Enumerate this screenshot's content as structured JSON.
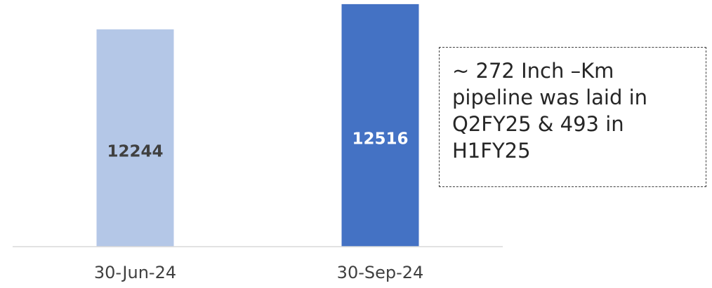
{
  "chart_data": {
    "type": "bar",
    "categories": [
      "30-Jun-24",
      "30-Sep-24"
    ],
    "values": [
      12244,
      12516
    ],
    "colors": [
      "#b4c7e7",
      "#4472c4"
    ],
    "label_colors": [
      "#404040",
      "#ffffff"
    ],
    "ylim": [
      9900,
      12550
    ],
    "annotation": "~ 272 Inch –Km pipeline was laid in Q2FY25 & 493 in H1FY25"
  }
}
